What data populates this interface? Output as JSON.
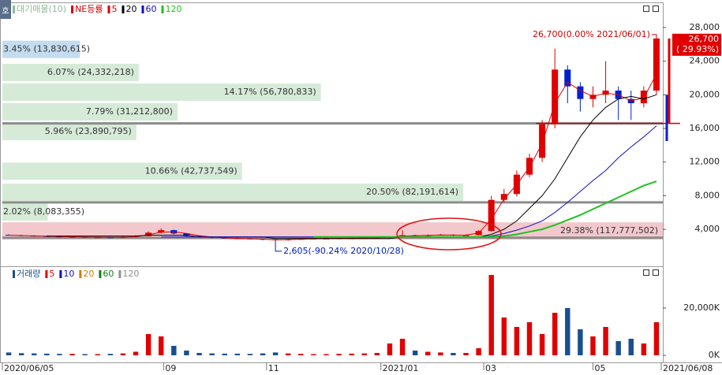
{
  "chart_data": {
    "type": "candlestick",
    "toolbar": "호",
    "overlays": [
      {
        "name": "대기매물(10)",
        "color": "#8fb89a"
      },
      {
        "name": "NE등률",
        "color": "#d00000"
      }
    ],
    "up_color": "#e00000",
    "down_color": "#0020d0",
    "xlim": [
      0,
      52
    ],
    "xticks": [
      {
        "value": 0,
        "label": "2020/06/05"
      },
      {
        "value": 12.7,
        "label": "09"
      },
      {
        "value": 20.8,
        "label": "11"
      },
      {
        "value": 29.8,
        "label": "2021/01"
      },
      {
        "value": 37.9,
        "label": "03"
      },
      {
        "value": 46.5,
        "label": "05"
      },
      {
        "value": 52,
        "label": "2021/06/08"
      }
    ],
    "ylim": [
      -400,
      30900
    ],
    "yticks": [
      {
        "value": 4000,
        "label": "4,000"
      },
      {
        "value": 8000,
        "label": "8,000"
      },
      {
        "value": 12000,
        "label": "12,000"
      },
      {
        "value": 16000,
        "label": "16,000"
      },
      {
        "value": 20000,
        "label": "20,000"
      },
      {
        "value": 24000,
        "label": "24,000"
      },
      {
        "value": 28000,
        "label": "28,000"
      }
    ],
    "open": [
      3350,
      3300,
      3250,
      3200,
      3150,
      3100,
      3100,
      3050,
      3050,
      3000,
      3100,
      3200,
      3600,
      3900,
      3500,
      3200,
      3100,
      3000,
      2950,
      2900,
      2850,
      2800,
      2700,
      2800,
      2850,
      2900,
      2900,
      2950,
      2950,
      3000,
      3000,
      3100,
      3300,
      3200,
      3300,
      3350,
      3300,
      3300,
      3800,
      7500,
      8200,
      10500,
      12500,
      16500,
      23000,
      21000,
      19500,
      20000,
      20500,
      19500,
      19000,
      20500
    ],
    "close": [
      3300,
      3250,
      3200,
      3150,
      3100,
      3100,
      3050,
      3050,
      3000,
      3100,
      3200,
      3600,
      3900,
      3500,
      3200,
      3100,
      3000,
      2950,
      2900,
      2850,
      2800,
      2700,
      2800,
      2850,
      2900,
      2900,
      2950,
      2950,
      3000,
      3000,
      3100,
      3300,
      3200,
      3300,
      3350,
      3300,
      3300,
      3800,
      7500,
      8200,
      10500,
      12500,
      16500,
      23000,
      21000,
      19500,
      20000,
      20500,
      19500,
      19000,
      20500,
      26700
    ],
    "high": [
      3400,
      3350,
      3300,
      3250,
      3200,
      3200,
      3150,
      3100,
      3100,
      3200,
      3300,
      3750,
      4100,
      3950,
      3550,
      3250,
      3150,
      3050,
      3000,
      2950,
      2900,
      2850,
      2850,
      2900,
      2950,
      2950,
      3000,
      3000,
      3050,
      3100,
      3150,
      3900,
      3350,
      3400,
      3450,
      3400,
      3400,
      3900,
      8000,
      8800,
      11000,
      13000,
      17000,
      25500,
      23500,
      21500,
      21000,
      24000,
      21000,
      20500,
      21000,
      26700
    ],
    "low": [
      3250,
      3200,
      3150,
      3100,
      3050,
      3050,
      3000,
      3000,
      2950,
      2950,
      3050,
      3150,
      3500,
      3400,
      3150,
      3050,
      2950,
      2900,
      2850,
      2800,
      2700,
      2605,
      2650,
      2750,
      2800,
      2850,
      2850,
      2900,
      2900,
      2950,
      2950,
      3050,
      3100,
      3150,
      3250,
      3200,
      3200,
      3250,
      3700,
      7200,
      7900,
      10200,
      12000,
      16000,
      19000,
      18000,
      18500,
      19000,
      17000,
      17000,
      18500,
      20000
    ],
    "series": [
      {
        "name": "5",
        "color": "#e00000",
        "values": [
          3300,
          3260,
          3220,
          3180,
          3140,
          3110,
          3080,
          3060,
          3040,
          3050,
          3120,
          3350,
          3650,
          3700,
          3500,
          3250,
          3080,
          2980,
          2920,
          2870,
          2820,
          2740,
          2760,
          2820,
          2870,
          2900,
          2930,
          2950,
          2980,
          3000,
          3060,
          3200,
          3230,
          3270,
          3320,
          3310,
          3300,
          3550,
          5200,
          7600,
          9300,
          11400,
          14200,
          19000,
          21500,
          20500,
          19800,
          20200,
          20000,
          19300,
          19600,
          22500
        ]
      },
      {
        "name": "20",
        "color": "#000000",
        "values": [
          null,
          null,
          null,
          3200,
          3200,
          3200,
          3200,
          3200,
          3200,
          3200,
          3200,
          3300,
          3300,
          3300,
          3300,
          3100,
          3100,
          3100,
          3100,
          3100,
          3100,
          2900,
          2900,
          2900,
          2900,
          2900,
          2900,
          2900,
          2900,
          2900,
          2900,
          3100,
          3100,
          3100,
          3100,
          3100,
          3100,
          3100,
          3400,
          4000,
          5000,
          6500,
          8000,
          10000,
          12500,
          15000,
          17000,
          18500,
          19500,
          19800,
          19500,
          20000
        ]
      },
      {
        "name": "60",
        "color": "#1010c0",
        "values": [
          null,
          null,
          null,
          null,
          null,
          null,
          null,
          null,
          null,
          null,
          null,
          null,
          3100,
          3100,
          3100,
          3100,
          3100,
          3100,
          3100,
          3100,
          3100,
          3100,
          3100,
          3100,
          3100,
          3100,
          3100,
          3100,
          3100,
          3100,
          3100,
          3100,
          3100,
          3100,
          3100,
          3100,
          3100,
          3100,
          3200,
          3500,
          3900,
          4400,
          5000,
          6000,
          7200,
          8500,
          9800,
          11000,
          12500,
          13800,
          15000,
          16300
        ]
      },
      {
        "name": "120",
        "color": "#20c020",
        "values": [
          null,
          null,
          null,
          null,
          null,
          null,
          null,
          null,
          null,
          null,
          null,
          null,
          null,
          null,
          null,
          null,
          null,
          null,
          null,
          null,
          null,
          null,
          null,
          null,
          3100,
          3100,
          3100,
          3100,
          3100,
          3100,
          3100,
          3100,
          3100,
          3100,
          3100,
          3100,
          3100,
          3100,
          3100,
          3200,
          3400,
          3700,
          4000,
          4500,
          5100,
          5700,
          6400,
          7100,
          7800,
          8500,
          9200,
          9700
        ]
      }
    ],
    "volume_profile": [
      {
        "price": 25400,
        "value": 3.45,
        "label": "3.45% (13,830,615)",
        "color": "#c4dcf0"
      },
      {
        "price": 22660,
        "value": 6.07,
        "label": "6.07% (24,332,218)",
        "color": "#d6ead8"
      },
      {
        "price": 20300,
        "value": 14.17,
        "label": "14.17% (56,780,833)",
        "color": "#d6ead8"
      },
      {
        "price": 17970,
        "value": 7.79,
        "label": "7.79% (31,212,800)",
        "color": "#d6ead8"
      },
      {
        "price": 15630,
        "value": 5.96,
        "label": "5.96% (23,890,795)",
        "color": "#d6ead8"
      },
      {
        "price": 10900,
        "value": 10.66,
        "label": "10.66% (42,737,549)",
        "color": "#d6ead8"
      },
      {
        "price": 8400,
        "value": 20.5,
        "label": "20.50% (82,191,614)",
        "color": "#d6ead8"
      },
      {
        "price": 6060,
        "value": 2.02,
        "label": "2.02% (8,083,355)",
        "color": "#d6ead8"
      },
      {
        "price": 3800,
        "value": 29.38,
        "label": "29.38% (117,777,502)",
        "color": "#f2c8cc"
      }
    ],
    "hlines": [
      {
        "value": 16600,
        "color": "#8c8c8c"
      },
      {
        "value": 7200,
        "color": "#8c8c8c"
      },
      {
        "value": 3000,
        "color": "#8c8c8c"
      }
    ],
    "annotations": [
      {
        "text": "26,700(0.00% 2021/06/01)",
        "x": 51,
        "value": 26700,
        "color": "#d00000"
      },
      {
        "text": "2,605(-90.24% 2020/10/28)",
        "x": 21,
        "value": 2605,
        "color": "#0020b0"
      }
    ],
    "last_price": {
      "value": 26700,
      "label": "26,700",
      "change_label": "( 29.93%)",
      "color": "#e00000"
    },
    "volume": {
      "name": "거래량",
      "color": "#1a4f8f",
      "legend": [
        {
          "name": "5",
          "color": "#e00000"
        },
        {
          "name": "10",
          "color": "#1010c0"
        },
        {
          "name": "20",
          "color": "#d08000"
        },
        {
          "name": "60",
          "color": "#108010"
        },
        {
          "name": "120",
          "color": "#909090"
        }
      ],
      "ylim": [
        -3000,
        36000
      ],
      "yticks": [
        {
          "value": 0,
          "label": "0K"
        },
        {
          "value": 20000,
          "label": "20,000K"
        }
      ],
      "values": [
        1200,
        900,
        800,
        700,
        600,
        600,
        500,
        500,
        600,
        800,
        1500,
        9000,
        8000,
        4000,
        2000,
        1000,
        800,
        700,
        700,
        600,
        800,
        1200,
        800,
        600,
        500,
        500,
        600,
        700,
        800,
        1000,
        5000,
        7000,
        2000,
        1500,
        1200,
        1000,
        1000,
        3000,
        34000,
        16000,
        12000,
        14000,
        9000,
        18000,
        20000,
        11000,
        8000,
        12000,
        6000,
        7000,
        5000,
        14000
      ]
    }
  }
}
